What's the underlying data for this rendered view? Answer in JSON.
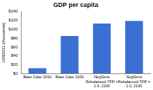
{
  "chart_data": {
    "type": "bar",
    "title": "GDP per capita",
    "y_label": "US$2011 (thousands)",
    "categories": [
      "Base Case 2010",
      "Base Case 2100",
      "NegSens Rebalanced TFR = 1.9, 2100",
      "NegSens Rebalanced TFR = 1.0, 2100"
    ],
    "values": [
      12,
      85,
      113,
      119
    ],
    "color": "#3a6fd4",
    "ylim": [
      0,
      140
    ],
    "yticks": [
      {
        "value": 0,
        "label": "$0"
      },
      {
        "value": 20,
        "label": "$20"
      },
      {
        "value": 40,
        "label": "$40"
      },
      {
        "value": 60,
        "label": "$60"
      },
      {
        "value": 80,
        "label": "$80"
      },
      {
        "value": 100,
        "label": "$100"
      },
      {
        "value": 120,
        "label": "$120"
      },
      {
        "value": 140,
        "label": "$140"
      }
    ],
    "grid": false
  }
}
